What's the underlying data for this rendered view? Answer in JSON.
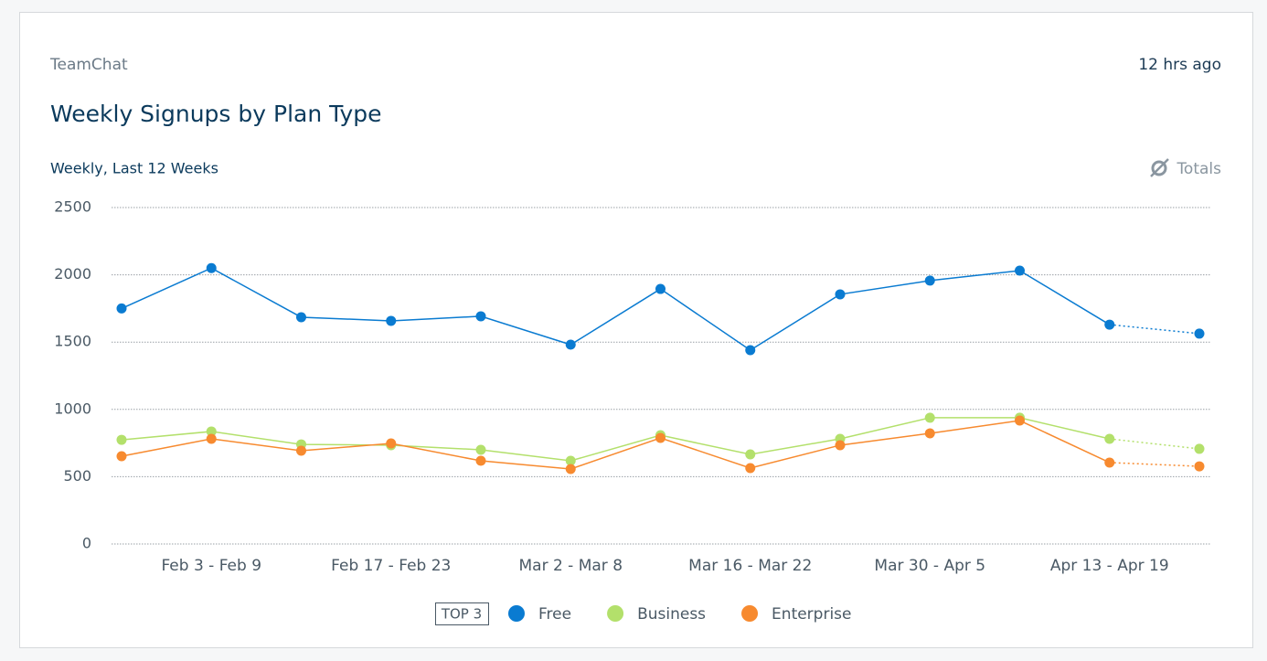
{
  "chart_data": {
    "type": "line",
    "source": "TeamChat",
    "updated": "12 hrs ago",
    "title": "Weekly Signups by Plan Type",
    "subtitle": "Weekly, Last 12 Weeks",
    "toggle_label": "Totals",
    "legend_badge": "TOP 3",
    "categories": [
      null,
      "Feb 3 - Feb 9",
      null,
      "Feb 17 - Feb 23",
      null,
      "Mar 2 - Mar 8",
      null,
      "Mar 16 - Mar 22",
      null,
      "Mar 30 - Apr 5",
      null,
      "Apr 13 - Apr 19",
      null
    ],
    "series": [
      {
        "name": "Free",
        "color": "#0a7bd1",
        "values": [
          1750,
          2050,
          1685,
          1658,
          1692,
          1481,
          1895,
          1440,
          1855,
          1957,
          2031,
          1630,
          1563
        ]
      },
      {
        "name": "Business",
        "color": "#b3e06b",
        "values": [
          774,
          836,
          740,
          734,
          700,
          618,
          808,
          666,
          781,
          938,
          938,
          781,
          707
        ]
      },
      {
        "name": "Enterprise",
        "color": "#f78a2f",
        "values": [
          652,
          781,
          693,
          747,
          618,
          557,
          788,
          564,
          734,
          822,
          917,
          605,
          577
        ]
      }
    ],
    "ylim": [
      0,
      2500
    ],
    "yticks": [
      0,
      500,
      1000,
      1500,
      2000,
      2500
    ],
    "grid": true
  }
}
